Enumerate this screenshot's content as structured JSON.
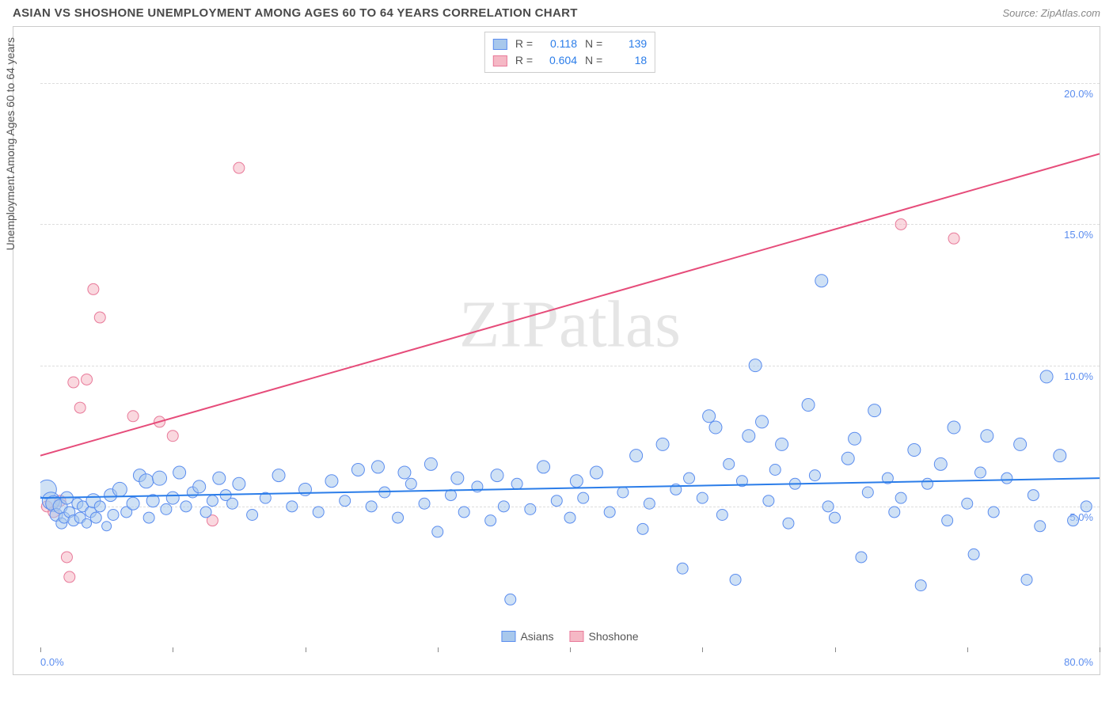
{
  "header": {
    "title": "ASIAN VS SHOSHONE UNEMPLOYMENT AMONG AGES 60 TO 64 YEARS CORRELATION CHART",
    "source": "Source: ZipAtlas.com"
  },
  "watermark": {
    "text_light": "ZIP",
    "text_reg": "atlas"
  },
  "chart": {
    "type": "scatter",
    "y_axis_label": "Unemployment Among Ages 60 to 64 years",
    "background_color": "#ffffff",
    "grid_color": "#dddddd",
    "border_color": "#cccccc",
    "x_lim": [
      0,
      80
    ],
    "y_lim": [
      0,
      22
    ],
    "x_ticks": [
      0,
      10,
      20,
      30,
      40,
      50,
      60,
      70,
      80
    ],
    "x_tick_labels": {
      "0": "0.0%",
      "80": "80.0%"
    },
    "y_grid": [
      5,
      10,
      15,
      20
    ],
    "y_tick_labels": {
      "5": "5.0%",
      "10": "10.0%",
      "15": "15.0%",
      "20": "20.0%"
    },
    "tick_label_color": "#5b8def",
    "series": [
      {
        "name": "Asians",
        "fill_color": "#a8c8ec",
        "stroke_color": "#5b8def",
        "fill_opacity": 0.55,
        "marker": "circle",
        "R": 0.118,
        "N": 139,
        "trend": {
          "x1": 0,
          "y1": 5.3,
          "x2": 80,
          "y2": 6.0,
          "color": "#2b7de9",
          "width": 2
        },
        "points": [
          [
            0.5,
            5.6,
            12
          ],
          [
            0.8,
            5.2,
            11
          ],
          [
            1,
            5.1,
            10
          ],
          [
            1.2,
            4.7,
            8
          ],
          [
            1.5,
            5.0,
            9
          ],
          [
            1.6,
            4.4,
            7
          ],
          [
            1.8,
            4.6,
            7
          ],
          [
            2,
            5.3,
            8
          ],
          [
            2.2,
            4.8,
            7
          ],
          [
            2.5,
            4.5,
            7
          ],
          [
            2.8,
            5.1,
            7
          ],
          [
            3,
            4.6,
            7
          ],
          [
            3.2,
            5.0,
            7
          ],
          [
            3.5,
            4.4,
            6
          ],
          [
            3.8,
            4.8,
            7
          ],
          [
            4,
            5.2,
            9
          ],
          [
            4.2,
            4.6,
            7
          ],
          [
            4.5,
            5.0,
            7
          ],
          [
            5,
            4.3,
            6
          ],
          [
            5.3,
            5.4,
            8
          ],
          [
            5.5,
            4.7,
            7
          ],
          [
            6,
            5.6,
            9
          ],
          [
            6.5,
            4.8,
            7
          ],
          [
            7,
            5.1,
            8
          ],
          [
            7.5,
            6.1,
            8
          ],
          [
            8,
            5.9,
            9
          ],
          [
            8.2,
            4.6,
            7
          ],
          [
            8.5,
            5.2,
            8
          ],
          [
            9,
            6.0,
            9
          ],
          [
            9.5,
            4.9,
            7
          ],
          [
            10,
            5.3,
            8
          ],
          [
            10.5,
            6.2,
            8
          ],
          [
            11,
            5.0,
            7
          ],
          [
            11.5,
            5.5,
            7
          ],
          [
            12,
            5.7,
            8
          ],
          [
            12.5,
            4.8,
            7
          ],
          [
            13,
            5.2,
            7
          ],
          [
            13.5,
            6.0,
            8
          ],
          [
            14,
            5.4,
            7
          ],
          [
            14.5,
            5.1,
            7
          ],
          [
            15,
            5.8,
            8
          ],
          [
            16,
            4.7,
            7
          ],
          [
            17,
            5.3,
            7
          ],
          [
            18,
            6.1,
            8
          ],
          [
            19,
            5.0,
            7
          ],
          [
            20,
            5.6,
            8
          ],
          [
            21,
            4.8,
            7
          ],
          [
            22,
            5.9,
            8
          ],
          [
            23,
            5.2,
            7
          ],
          [
            24,
            6.3,
            8
          ],
          [
            25,
            5.0,
            7
          ],
          [
            25.5,
            6.4,
            8
          ],
          [
            26,
            5.5,
            7
          ],
          [
            27,
            4.6,
            7
          ],
          [
            27.5,
            6.2,
            8
          ],
          [
            28,
            5.8,
            7
          ],
          [
            29,
            5.1,
            7
          ],
          [
            29.5,
            6.5,
            8
          ],
          [
            30,
            4.1,
            7
          ],
          [
            31,
            5.4,
            7
          ],
          [
            31.5,
            6.0,
            8
          ],
          [
            32,
            4.8,
            7
          ],
          [
            33,
            5.7,
            7
          ],
          [
            34,
            4.5,
            7
          ],
          [
            34.5,
            6.1,
            8
          ],
          [
            35,
            5.0,
            7
          ],
          [
            35.5,
            1.7,
            7
          ],
          [
            36,
            5.8,
            7
          ],
          [
            37,
            4.9,
            7
          ],
          [
            38,
            6.4,
            8
          ],
          [
            39,
            5.2,
            7
          ],
          [
            40,
            4.6,
            7
          ],
          [
            40.5,
            5.9,
            8
          ],
          [
            41,
            5.3,
            7
          ],
          [
            42,
            6.2,
            8
          ],
          [
            43,
            4.8,
            7
          ],
          [
            44,
            5.5,
            7
          ],
          [
            45,
            6.8,
            8
          ],
          [
            45.5,
            4.2,
            7
          ],
          [
            46,
            5.1,
            7
          ],
          [
            47,
            7.2,
            8
          ],
          [
            48,
            5.6,
            7
          ],
          [
            48.5,
            2.8,
            7
          ],
          [
            49,
            6.0,
            7
          ],
          [
            50,
            5.3,
            7
          ],
          [
            50.5,
            8.2,
            8
          ],
          [
            51,
            7.8,
            8
          ],
          [
            51.5,
            4.7,
            7
          ],
          [
            52,
            6.5,
            7
          ],
          [
            52.5,
            2.4,
            7
          ],
          [
            53,
            5.9,
            7
          ],
          [
            53.5,
            7.5,
            8
          ],
          [
            54,
            10.0,
            8
          ],
          [
            54.5,
            8.0,
            8
          ],
          [
            55,
            5.2,
            7
          ],
          [
            55.5,
            6.3,
            7
          ],
          [
            56,
            7.2,
            8
          ],
          [
            56.5,
            4.4,
            7
          ],
          [
            57,
            5.8,
            7
          ],
          [
            58,
            8.6,
            8
          ],
          [
            58.5,
            6.1,
            7
          ],
          [
            59,
            13.0,
            8
          ],
          [
            59.5,
            5.0,
            7
          ],
          [
            60,
            4.6,
            7
          ],
          [
            61,
            6.7,
            8
          ],
          [
            61.5,
            7.4,
            8
          ],
          [
            62,
            3.2,
            7
          ],
          [
            62.5,
            5.5,
            7
          ],
          [
            63,
            8.4,
            8
          ],
          [
            64,
            6.0,
            7
          ],
          [
            64.5,
            4.8,
            7
          ],
          [
            65,
            5.3,
            7
          ],
          [
            66,
            7.0,
            8
          ],
          [
            66.5,
            2.2,
            7
          ],
          [
            67,
            5.8,
            7
          ],
          [
            68,
            6.5,
            8
          ],
          [
            68.5,
            4.5,
            7
          ],
          [
            69,
            7.8,
            8
          ],
          [
            70,
            5.1,
            7
          ],
          [
            70.5,
            3.3,
            7
          ],
          [
            71,
            6.2,
            7
          ],
          [
            71.5,
            7.5,
            8
          ],
          [
            72,
            4.8,
            7
          ],
          [
            73,
            6.0,
            7
          ],
          [
            74,
            7.2,
            8
          ],
          [
            74.5,
            2.4,
            7
          ],
          [
            75,
            5.4,
            7
          ],
          [
            75.5,
            4.3,
            7
          ],
          [
            76,
            9.6,
            8
          ],
          [
            77,
            6.8,
            8
          ],
          [
            78,
            4.5,
            7
          ],
          [
            79,
            5.0,
            7
          ]
        ]
      },
      {
        "name": "Shoshone",
        "fill_color": "#f5b8c5",
        "stroke_color": "#e87a9a",
        "fill_opacity": 0.55,
        "marker": "circle",
        "R": 0.604,
        "N": 18,
        "trend": {
          "x1": 0,
          "y1": 6.8,
          "x2": 80,
          "y2": 17.5,
          "color": "#e64c7a",
          "width": 2
        },
        "points": [
          [
            0.5,
            5.0,
            7
          ],
          [
            1,
            4.8,
            7
          ],
          [
            1.5,
            5.2,
            7
          ],
          [
            2,
            3.2,
            7
          ],
          [
            2.2,
            2.5,
            7
          ],
          [
            2.5,
            9.4,
            7
          ],
          [
            3,
            8.5,
            7
          ],
          [
            3.5,
            9.5,
            7
          ],
          [
            4,
            12.7,
            7
          ],
          [
            4.5,
            11.7,
            7
          ],
          [
            7,
            8.2,
            7
          ],
          [
            9,
            8.0,
            7
          ],
          [
            10,
            7.5,
            7
          ],
          [
            13,
            4.5,
            7
          ],
          [
            15,
            17.0,
            7
          ],
          [
            65,
            15.0,
            7
          ],
          [
            69,
            14.5,
            7
          ]
        ]
      }
    ],
    "legend_bottom": [
      {
        "label": "Asians",
        "fill": "#a8c8ec",
        "stroke": "#5b8def"
      },
      {
        "label": "Shoshone",
        "fill": "#f5b8c5",
        "stroke": "#e87a9a"
      }
    ]
  }
}
